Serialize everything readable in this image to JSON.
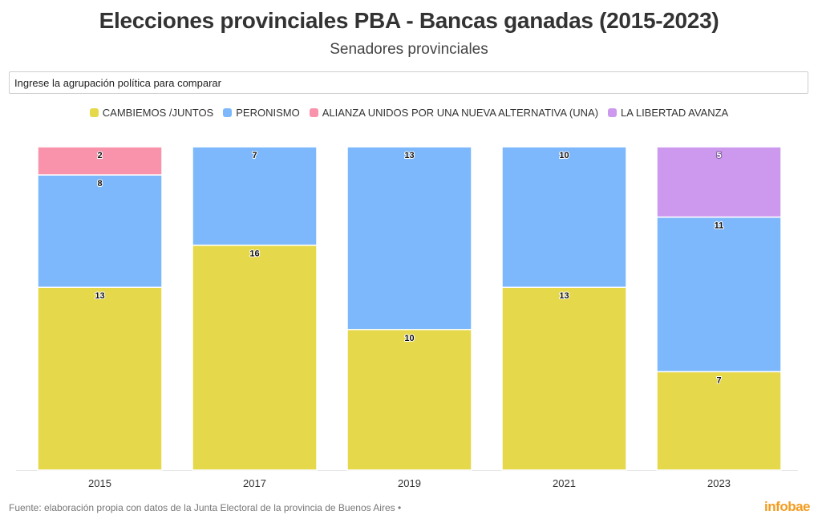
{
  "header": {
    "title": "Elecciones provinciales PBA - Bancas ganadas (2015-2023)",
    "subtitle": "Senadores provinciales"
  },
  "search": {
    "placeholder": "Ingrese la agrupación política para comparar"
  },
  "footer": {
    "source": "Fuente: elaboración propia con datos de la Junta Electoral de la provincia de Buenos Aires •",
    "brand": "infobae"
  },
  "chart_data": {
    "type": "bar",
    "stacked": true,
    "categories": [
      "2015",
      "2017",
      "2019",
      "2021",
      "2023"
    ],
    "series": [
      {
        "name": "CAMBIEMOS /JUNTOS",
        "color": "#e6d84b",
        "values": [
          13,
          16,
          10,
          13,
          7
        ]
      },
      {
        "name": "PERONISMO",
        "color": "#7cb8fb",
        "values": [
          8,
          7,
          13,
          10,
          11
        ]
      },
      {
        "name": "ALIANZA UNIDOS POR UNA NUEVA ALTERNATIVA (UNA)",
        "color": "#f893ab",
        "values": [
          2,
          0,
          0,
          0,
          0
        ]
      },
      {
        "name": "LA LIBERTAD AVANZA",
        "color": "#cd99ee",
        "values": [
          0,
          0,
          0,
          0,
          5
        ]
      }
    ],
    "normalized": true,
    "legend_position": "top-center",
    "grid": false
  }
}
